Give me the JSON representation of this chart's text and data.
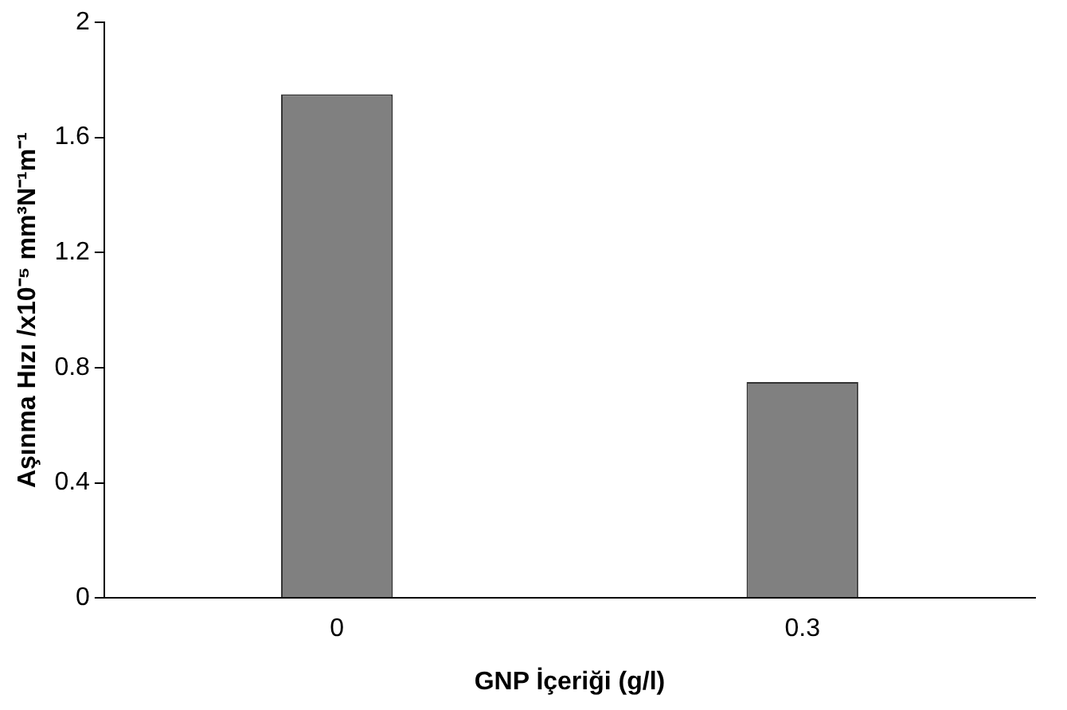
{
  "chart_data": {
    "type": "bar",
    "xlabel": "GNP İçeriği (g/l)",
    "ylabel": "Aşınma Hızı /x10⁻⁵ mm³N⁻¹m⁻¹",
    "categories": [
      "0",
      "0.3"
    ],
    "values": [
      1.75,
      0.75
    ],
    "color": "#808080",
    "ylim": [
      0,
      2
    ],
    "yticks": [
      0,
      0.4,
      0.8,
      1.2,
      1.6,
      2
    ],
    "grid": false,
    "legend": false
  }
}
